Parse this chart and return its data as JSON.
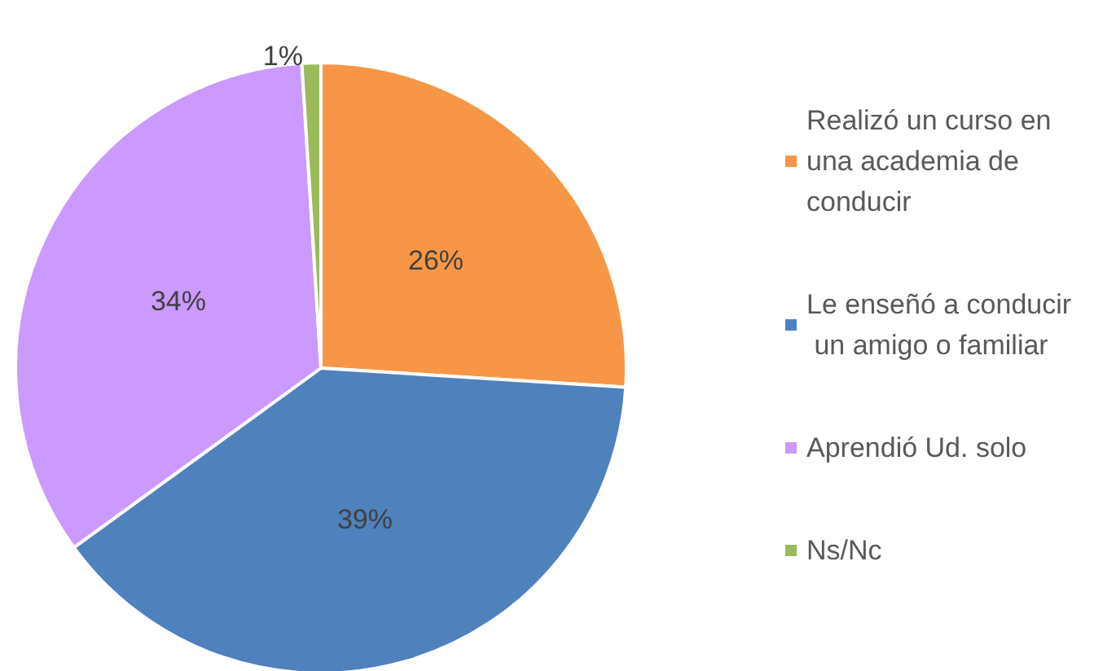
{
  "chart_data": {
    "type": "pie",
    "categories": [
      "Realizó un curso en una academia de conducir",
      "Le enseñó a conducir un amigo o familiar",
      "Aprendió Ud. solo",
      "Ns/Nc"
    ],
    "values": [
      26,
      39,
      34,
      1
    ],
    "colors": [
      "#f79646",
      "#4f81bd",
      "#cc99ff",
      "#9bbb59"
    ],
    "value_labels": [
      "26%",
      "39%",
      "34%",
      "1%"
    ],
    "legend": "right"
  }
}
